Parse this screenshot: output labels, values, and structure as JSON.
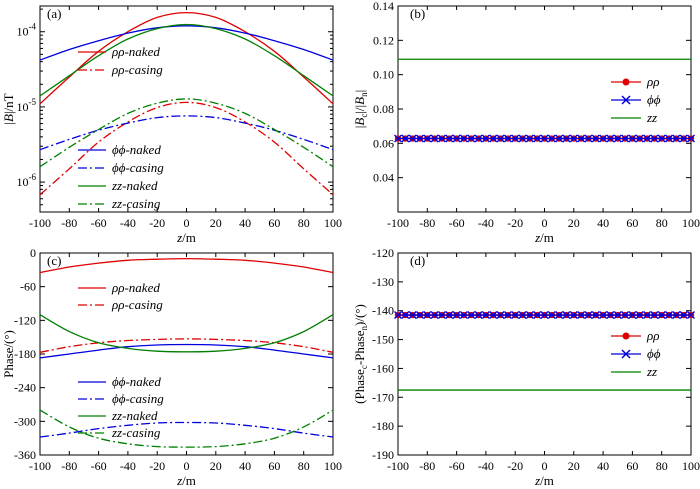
{
  "chart_data": [
    {
      "id": "a",
      "tag": "(a)",
      "type": "line",
      "yscale": "log",
      "xlim": [
        -100,
        100
      ],
      "ylim": [
        4e-07,
        0.00022
      ],
      "xticks": [
        "-100",
        "-80",
        "-60",
        "-40",
        "-20",
        "0",
        "20",
        "40",
        "60",
        "80",
        "100"
      ],
      "ytick_values": [
        1e-06,
        1e-05,
        0.0001
      ],
      "yticks": [
        "10",
        "10",
        "10"
      ],
      "ytick_exps": [
        "-6",
        "-5",
        "-4"
      ],
      "xlabel": "z",
      "xunit": "/m",
      "ylabel": "|B|/nT",
      "legend": [
        {
          "label": "ρρ-naked",
          "color": "#e00000",
          "dash": "solid"
        },
        {
          "label": "ρρ-casing",
          "color": "#e00000",
          "dash": "dashdot"
        },
        {
          "label": "ϕϕ-naked",
          "color": "#0000dd",
          "dash": "solid"
        },
        {
          "label": "ϕϕ-casing",
          "color": "#0000dd",
          "dash": "dashdot"
        },
        {
          "label": "zz-naked",
          "color": "#008000",
          "dash": "solid"
        },
        {
          "label": "zz-casing",
          "color": "#008000",
          "dash": "dashdot"
        }
      ],
      "x": [
        -100,
        -80,
        -60,
        -40,
        -20,
        0,
        20,
        40,
        60,
        80,
        100
      ],
      "series": [
        {
          "name": "ρρ-naked",
          "values": [
            1.1e-05,
            2.5e-05,
            5.5e-05,
            0.0001,
            0.000155,
            0.00018,
            0.000155,
            0.0001,
            5.5e-05,
            2.5e-05,
            1.1e-05
          ]
        },
        {
          "name": "ρρ-casing",
          "values": [
            6.8e-07,
            1.5e-06,
            3.4e-06,
            6.3e-06,
            9.8e-06,
            1.15e-05,
            9.8e-06,
            6.3e-06,
            3.4e-06,
            1.5e-06,
            6.8e-07
          ]
        },
        {
          "name": "ϕϕ-naked",
          "values": [
            4.2e-05,
            5.8e-05,
            7.6e-05,
            9.6e-05,
            0.000113,
            0.00012,
            0.000113,
            9.6e-05,
            7.6e-05,
            5.8e-05,
            4.2e-05
          ]
        },
        {
          "name": "ϕϕ-casing",
          "values": [
            2.7e-06,
            3.7e-06,
            4.9e-06,
            6.1e-06,
            7.2e-06,
            7.6e-06,
            7.2e-06,
            6.1e-06,
            4.9e-06,
            3.7e-06,
            2.7e-06
          ]
        },
        {
          "name": "zz-naked",
          "values": [
            1.4e-05,
            2.6e-05,
            4.8e-05,
            8e-05,
            0.00011,
            0.000125,
            0.00011,
            8e-05,
            4.8e-05,
            2.6e-05,
            1.4e-05
          ]
        },
        {
          "name": "zz-casing",
          "values": [
            1.6e-06,
            2.9e-06,
            5e-06,
            8.2e-06,
            1.12e-05,
            1.28e-05,
            1.12e-05,
            8.2e-06,
            5e-06,
            2.9e-06,
            1.6e-06
          ]
        }
      ]
    },
    {
      "id": "b",
      "tag": "(b)",
      "type": "line",
      "yscale": "linear",
      "xlim": [
        -100,
        100
      ],
      "ylim": [
        0.02,
        0.14
      ],
      "xticks": [
        "-100",
        "-80",
        "-60",
        "-40",
        "-20",
        "0",
        "20",
        "40",
        "60",
        "80",
        "100"
      ],
      "ytick_values": [
        0.04,
        0.06,
        0.08,
        0.1,
        0.12,
        0.14
      ],
      "yticks": [
        "0.04",
        "0.06",
        "0.08",
        "0.10",
        "0.12",
        "0.14"
      ],
      "xlabel": "z",
      "xunit": "/m",
      "ylabel": "|Bc|/|Bn|",
      "legend": [
        {
          "label": "ρρ",
          "color": "#e00000",
          "marker": "circle"
        },
        {
          "label": "ϕϕ",
          "color": "#0000dd",
          "marker": "cross"
        },
        {
          "label": "zz",
          "color": "#008000",
          "marker": "none"
        }
      ],
      "x": [
        -100,
        -95,
        -90,
        -85,
        -80,
        -75,
        -70,
        -65,
        -60,
        -55,
        -50,
        -45,
        -40,
        -35,
        -30,
        -25,
        -20,
        -15,
        -10,
        -5,
        0,
        5,
        10,
        15,
        20,
        25,
        30,
        35,
        40,
        45,
        50,
        55,
        60,
        65,
        70,
        75,
        80,
        85,
        90,
        95,
        100
      ],
      "series": [
        {
          "name": "ρρ",
          "constant": 0.0628
        },
        {
          "name": "ϕϕ",
          "constant": 0.0628
        },
        {
          "name": "zz",
          "constant": 0.109
        }
      ]
    },
    {
      "id": "c",
      "tag": "(c)",
      "type": "line",
      "yscale": "linear",
      "xlim": [
        -100,
        100
      ],
      "ylim": [
        -360,
        0
      ],
      "xticks": [
        "-100",
        "-80",
        "-60",
        "-40",
        "-20",
        "0",
        "20",
        "40",
        "60",
        "80",
        "100"
      ],
      "ytick_values": [
        -360,
        -300,
        -240,
        -180,
        -120,
        -60,
        0
      ],
      "yticks": [
        "-360",
        "-300",
        "-240",
        "-180",
        "-120",
        "-60",
        "0"
      ],
      "xlabel": "z",
      "xunit": "/m",
      "ylabel": "Phase/(°)",
      "legend": [
        {
          "label": "ρρ-naked",
          "color": "#e00000",
          "dash": "solid"
        },
        {
          "label": "ρρ-casing",
          "color": "#e00000",
          "dash": "dashdot"
        },
        {
          "label": "ϕϕ-naked",
          "color": "#0000dd",
          "dash": "solid"
        },
        {
          "label": "ϕϕ-casing",
          "color": "#0000dd",
          "dash": "dashdot"
        },
        {
          "label": "zz-naked",
          "color": "#008000",
          "dash": "solid"
        },
        {
          "label": "zz-casing",
          "color": "#008000",
          "dash": "dashdot"
        }
      ],
      "x": [
        -100,
        -80,
        -60,
        -40,
        -20,
        0,
        20,
        40,
        60,
        80,
        100
      ],
      "series": [
        {
          "name": "ρρ-naked",
          "values": [
            -35,
            -25,
            -18,
            -13,
            -11,
            -10,
            -11,
            -13,
            -18,
            -25,
            -35
          ]
        },
        {
          "name": "ρρ-casing",
          "values": [
            -177,
            -167,
            -160,
            -156,
            -154,
            -153,
            -154,
            -156,
            -160,
            -167,
            -177
          ]
        },
        {
          "name": "ϕϕ-naked",
          "values": [
            -187,
            -180,
            -173,
            -167,
            -164,
            -163,
            -164,
            -167,
            -173,
            -180,
            -187
          ]
        },
        {
          "name": "ϕϕ-casing",
          "values": [
            -328,
            -321,
            -313,
            -307,
            -303,
            -302,
            -303,
            -307,
            -313,
            -321,
            -328
          ]
        },
        {
          "name": "zz-naked",
          "values": [
            -110,
            -140,
            -160,
            -170,
            -175,
            -176,
            -175,
            -170,
            -160,
            -140,
            -110
          ]
        },
        {
          "name": "zz-casing",
          "values": [
            -280,
            -310,
            -330,
            -340,
            -345,
            -346,
            -345,
            -340,
            -330,
            -310,
            -280
          ]
        }
      ]
    },
    {
      "id": "d",
      "tag": "(d)",
      "type": "line",
      "yscale": "linear",
      "xlim": [
        -100,
        100
      ],
      "ylim": [
        -190,
        -120
      ],
      "xticks": [
        "-100",
        "-80",
        "-60",
        "-40",
        "-20",
        "0",
        "20",
        "40",
        "60",
        "80",
        "100"
      ],
      "ytick_values": [
        -190,
        -180,
        -170,
        -160,
        -150,
        -140,
        -130,
        -120
      ],
      "yticks": [
        "-190",
        "-180",
        "-170",
        "-160",
        "-150",
        "-140",
        "-130",
        "-120"
      ],
      "xlabel": "z",
      "xunit": "/m",
      "ylabel": "(Phasec-Phasen)/(°)",
      "legend": [
        {
          "label": "ρρ",
          "color": "#e00000",
          "marker": "circle"
        },
        {
          "label": "ϕϕ",
          "color": "#0000dd",
          "marker": "cross"
        },
        {
          "label": "zz",
          "color": "#008000",
          "marker": "none"
        }
      ],
      "x": [
        -100,
        -95,
        -90,
        -85,
        -80,
        -75,
        -70,
        -65,
        -60,
        -55,
        -50,
        -45,
        -40,
        -35,
        -30,
        -25,
        -20,
        -15,
        -10,
        -5,
        0,
        5,
        10,
        15,
        20,
        25,
        30,
        35,
        40,
        45,
        50,
        55,
        60,
        65,
        70,
        75,
        80,
        85,
        90,
        95,
        100
      ],
      "series": [
        {
          "name": "ρρ",
          "constant": -141.5
        },
        {
          "name": "ϕϕ",
          "constant": -141.5
        },
        {
          "name": "zz",
          "constant": -167.5
        }
      ]
    }
  ]
}
